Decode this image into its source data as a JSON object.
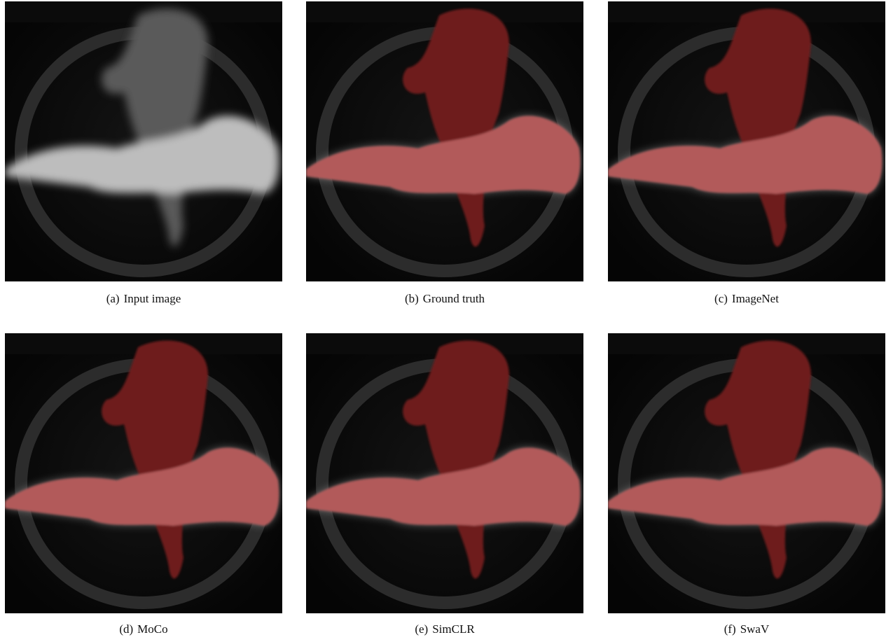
{
  "panels": [
    {
      "label": "(a)",
      "caption": "Input image"
    },
    {
      "label": "(b)",
      "caption": "Ground truth"
    },
    {
      "label": "(c)",
      "caption": "ImageNet"
    },
    {
      "label": "(d)",
      "caption": "MoCo"
    },
    {
      "label": "(e)",
      "caption": "SimCLR"
    },
    {
      "label": "(f)",
      "caption": "SwaV"
    }
  ]
}
